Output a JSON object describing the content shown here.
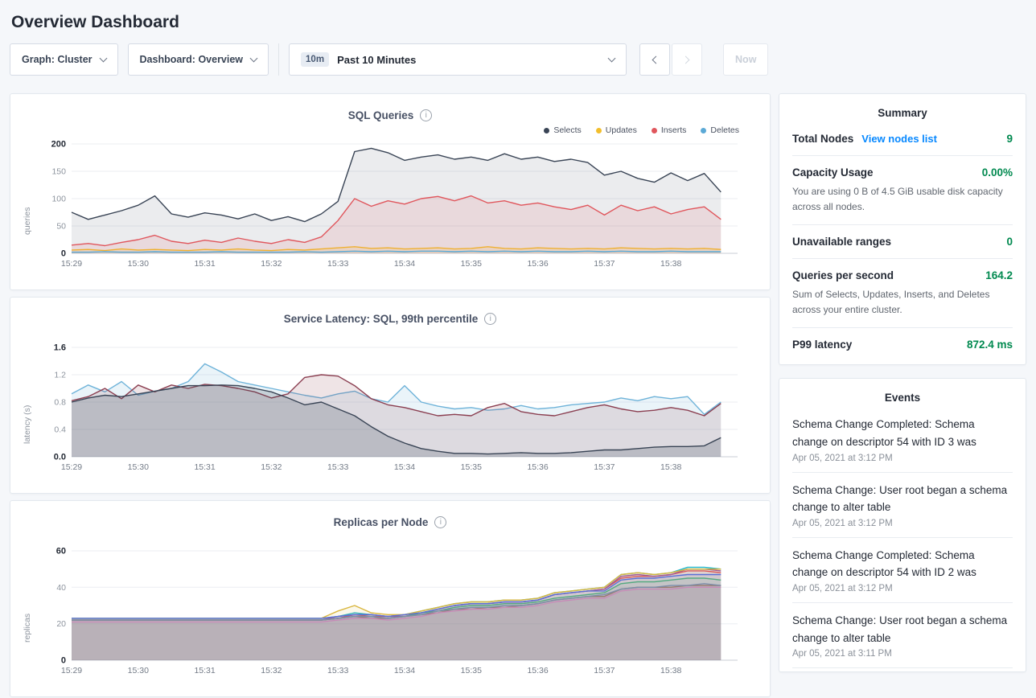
{
  "page": {
    "title": "Overview Dashboard"
  },
  "colors": {
    "accent_green": "#00894f",
    "link_blue": "#0788ff",
    "background": "#f5f7fa"
  },
  "toolbar": {
    "graph_dropdown": "Graph: Cluster",
    "dashboard_dropdown": "Dashboard: Overview",
    "time_selector": {
      "badge": "10m",
      "value": "Past 10 Minutes"
    },
    "now_button": "Now"
  },
  "summary": {
    "title": "Summary",
    "rows": [
      {
        "label": "Total Nodes",
        "link": "View nodes list",
        "value": "9"
      },
      {
        "label": "Capacity Usage",
        "value": "0.00%",
        "description": "You are using 0 B of 4.5 GiB usable disk capacity across all nodes."
      },
      {
        "label": "Unavailable ranges",
        "value": "0"
      },
      {
        "label": "Queries per second",
        "value": "164.2",
        "description": "Sum of Selects, Updates, Inserts, and Deletes across your entire cluster."
      },
      {
        "label": "P99 latency",
        "value": "872.4 ms"
      }
    ]
  },
  "events": {
    "title": "Events",
    "items": [
      {
        "message": "Schema Change Completed: Schema change on descriptor 54 with ID 3 was",
        "timestamp": "Apr 05, 2021 at 3:12 PM"
      },
      {
        "message": "Schema Change: User root began a schema change to alter table",
        "timestamp": "Apr 05, 2021 at 3:12 PM"
      },
      {
        "message": "Schema Change Completed: Schema change on descriptor 54 with ID 2 was",
        "timestamp": "Apr 05, 2021 at 3:12 PM"
      },
      {
        "message": "Schema Change: User root began a schema change to alter table",
        "timestamp": "Apr 05, 2021 at 3:11 PM"
      }
    ]
  },
  "chart_data": [
    {
      "type": "line",
      "title": "SQL Queries",
      "ylabel": "queries",
      "ylim": [
        0,
        200
      ],
      "yticks": [
        0,
        50,
        100,
        150,
        200
      ],
      "x_ticks": [
        "15:29",
        "15:30",
        "15:31",
        "15:32",
        "15:33",
        "15:34",
        "15:35",
        "15:36",
        "15:37",
        "15:38"
      ],
      "x_span_seconds": 600,
      "point_interval_seconds": 15,
      "legend": true,
      "legend_position": "top-right",
      "grid": true,
      "series": [
        {
          "name": "Selects",
          "color": "#394455",
          "fill": "rgba(57,68,85,0.10)",
          "values": [
            75,
            62,
            70,
            78,
            88,
            105,
            72,
            66,
            74,
            70,
            63,
            72,
            60,
            67,
            58,
            72,
            95,
            186,
            192,
            184,
            170,
            176,
            180,
            172,
            176,
            170,
            182,
            172,
            176,
            168,
            172,
            166,
            143,
            150,
            137,
            130,
            147,
            133,
            146,
            112
          ]
        },
        {
          "name": "Updates",
          "color": "#f2be2c",
          "fill": "rgba(242,190,44,0.15)",
          "values": [
            6,
            7,
            5,
            8,
            6,
            7,
            6,
            5,
            7,
            6,
            8,
            6,
            5,
            7,
            6,
            8,
            10,
            12,
            9,
            10,
            8,
            9,
            10,
            8,
            9,
            12,
            9,
            8,
            10,
            9,
            8,
            9,
            8,
            10,
            9,
            8,
            9,
            8,
            9,
            7
          ]
        },
        {
          "name": "Inserts",
          "color": "#e0565c",
          "fill": "rgba(224,86,92,0.12)",
          "values": [
            15,
            18,
            14,
            20,
            25,
            33,
            22,
            18,
            24,
            20,
            28,
            22,
            18,
            25,
            20,
            30,
            60,
            100,
            86,
            96,
            90,
            100,
            104,
            96,
            105,
            92,
            96,
            88,
            92,
            85,
            80,
            88,
            70,
            88,
            78,
            85,
            72,
            80,
            85,
            62
          ]
        },
        {
          "name": "Deletes",
          "color": "#5ba9d6",
          "fill": "none",
          "values": [
            2,
            2,
            3,
            2,
            2,
            3,
            2,
            2,
            2,
            3,
            2,
            2,
            2,
            2,
            3,
            2,
            3,
            4,
            3,
            4,
            3,
            4,
            4,
            3,
            4,
            3,
            4,
            3,
            4,
            3,
            3,
            4,
            3,
            4,
            3,
            3,
            4,
            3,
            3,
            3
          ]
        }
      ]
    },
    {
      "type": "line",
      "title": "Service Latency: SQL, 99th percentile",
      "ylabel": "latency (s)",
      "ylim": [
        0,
        1.6
      ],
      "yticks": [
        0,
        0.4,
        0.8,
        1.2,
        1.6
      ],
      "ytick_labels": [
        "0.0",
        "0.4",
        "0.8",
        "1.2",
        "1.6"
      ],
      "x_ticks": [
        "15:29",
        "15:30",
        "15:31",
        "15:32",
        "15:33",
        "15:34",
        "15:35",
        "15:36",
        "15:37",
        "15:38"
      ],
      "x_span_seconds": 600,
      "point_interval_seconds": 15,
      "legend": false,
      "grid": true,
      "series": [
        {
          "color": "#6fb3d9",
          "fill": "rgba(111,179,217,0.15)",
          "values": [
            0.92,
            1.05,
            0.95,
            1.1,
            0.9,
            0.96,
            1.0,
            1.1,
            1.36,
            1.24,
            1.1,
            1.05,
            1.0,
            0.95,
            0.9,
            0.86,
            0.92,
            0.96,
            0.85,
            0.8,
            1.04,
            0.8,
            0.74,
            0.7,
            0.72,
            0.68,
            0.7,
            0.75,
            0.7,
            0.72,
            0.76,
            0.78,
            0.8,
            0.86,
            0.82,
            0.88,
            0.85,
            0.88,
            0.62,
            0.8
          ]
        },
        {
          "color": "#8b3f51",
          "fill": "rgba(139,63,81,0.14)",
          "values": [
            0.82,
            0.88,
            1.0,
            0.85,
            1.05,
            0.95,
            1.05,
            1.0,
            1.06,
            1.04,
            1.0,
            0.95,
            0.86,
            0.92,
            1.16,
            1.2,
            1.18,
            1.04,
            0.85,
            0.76,
            0.72,
            0.66,
            0.6,
            0.62,
            0.6,
            0.72,
            0.78,
            0.66,
            0.62,
            0.6,
            0.66,
            0.72,
            0.76,
            0.7,
            0.66,
            0.68,
            0.72,
            0.68,
            0.6,
            0.78
          ]
        },
        {
          "color": "#394455",
          "fill": "rgba(57,68,85,0.20)",
          "values": [
            0.8,
            0.86,
            0.9,
            0.88,
            0.92,
            0.96,
            1.0,
            1.04,
            1.04,
            1.05,
            1.04,
            1.0,
            0.95,
            0.86,
            0.76,
            0.8,
            0.7,
            0.6,
            0.44,
            0.3,
            0.2,
            0.12,
            0.08,
            0.05,
            0.05,
            0.04,
            0.05,
            0.06,
            0.05,
            0.05,
            0.06,
            0.08,
            0.1,
            0.1,
            0.12,
            0.14,
            0.15,
            0.15,
            0.16,
            0.28
          ]
        }
      ]
    },
    {
      "type": "line",
      "title": "Replicas per Node",
      "ylabel": "replicas",
      "ylim": [
        0,
        60
      ],
      "yticks": [
        0,
        20,
        40,
        60
      ],
      "x_ticks": [
        "15:29",
        "15:30",
        "15:31",
        "15:32",
        "15:33",
        "15:34",
        "15:35",
        "15:36",
        "15:37",
        "15:38"
      ],
      "x_span_seconds": 600,
      "point_interval_seconds": 15,
      "legend": false,
      "grid": true,
      "series": [
        {
          "color": "#24b6c9",
          "fill": "rgba(36,182,201,0.10)",
          "values": [
            23,
            23,
            23,
            23,
            23,
            23,
            23,
            23,
            23,
            23,
            23,
            23,
            23,
            23,
            23,
            23,
            24,
            26,
            25,
            24,
            25,
            27,
            29,
            31,
            32,
            32,
            33,
            33,
            34,
            37,
            38,
            39,
            40,
            47,
            48,
            47,
            48,
            51,
            51,
            50
          ]
        },
        {
          "color": "#e34f57",
          "fill": "rgba(227,79,87,0.10)",
          "values": [
            22,
            22,
            22,
            22,
            22,
            22,
            22,
            22,
            22,
            22,
            22,
            22,
            22,
            22,
            22,
            22,
            23,
            25,
            24,
            24,
            25,
            26,
            28,
            30,
            31,
            31,
            32,
            32,
            33,
            36,
            37,
            38,
            39,
            45,
            46,
            46,
            47,
            49,
            49,
            48
          ]
        },
        {
          "color": "#9e4f9e",
          "fill": "rgba(158,79,158,0.10)",
          "values": [
            22,
            22,
            22,
            22,
            22,
            22,
            22,
            22,
            22,
            22,
            22,
            22,
            22,
            22,
            22,
            22,
            24,
            25,
            25,
            24,
            24,
            26,
            28,
            30,
            31,
            31,
            32,
            32,
            33,
            36,
            37,
            38,
            39,
            46,
            47,
            46,
            47,
            50,
            50,
            49
          ]
        },
        {
          "color": "#d9b63e",
          "fill": "rgba(217,182,62,0.10)",
          "values": [
            23,
            23,
            23,
            23,
            23,
            23,
            23,
            23,
            23,
            23,
            23,
            23,
            23,
            23,
            23,
            23,
            27,
            30,
            26,
            25,
            25,
            27,
            29,
            31,
            32,
            32,
            33,
            33,
            34,
            37,
            38,
            39,
            40,
            47,
            48,
            47,
            48,
            50,
            50,
            50
          ]
        },
        {
          "color": "#54b077",
          "fill": "rgba(84,176,119,0.10)",
          "values": [
            22,
            22,
            22,
            22,
            22,
            22,
            22,
            22,
            22,
            22,
            22,
            22,
            22,
            22,
            22,
            22,
            23,
            24,
            24,
            23,
            24,
            26,
            27,
            29,
            30,
            30,
            31,
            31,
            32,
            34,
            35,
            36,
            37,
            42,
            43,
            43,
            44,
            45,
            45,
            44
          ]
        },
        {
          "color": "#a8785a",
          "fill": "rgba(168,120,90,0.12)",
          "values": [
            22,
            22,
            22,
            22,
            22,
            22,
            22,
            22,
            22,
            22,
            22,
            22,
            22,
            22,
            22,
            22,
            23,
            24,
            23,
            23,
            24,
            25,
            26,
            28,
            28,
            29,
            29,
            30,
            31,
            33,
            34,
            35,
            35,
            39,
            40,
            40,
            40,
            41,
            41,
            41
          ]
        },
        {
          "color": "#e08fb8",
          "fill": "rgba(224,143,184,0.10)",
          "values": [
            21,
            21,
            21,
            21,
            21,
            21,
            21,
            21,
            21,
            21,
            21,
            21,
            21,
            21,
            21,
            21,
            22,
            23,
            23,
            22,
            23,
            24,
            26,
            27,
            28,
            28,
            29,
            29,
            30,
            32,
            33,
            34,
            34,
            38,
            39,
            39,
            39,
            40,
            40,
            40
          ]
        },
        {
          "color": "#8091a5",
          "fill": "rgba(128,145,165,0.12)",
          "values": [
            22,
            22,
            22,
            22,
            22,
            22,
            22,
            22,
            22,
            22,
            22,
            22,
            22,
            22,
            22,
            22,
            23,
            24,
            24,
            23,
            24,
            25,
            27,
            28,
            29,
            29,
            30,
            30,
            31,
            33,
            34,
            35,
            36,
            39,
            40,
            40,
            41,
            41,
            42,
            41
          ]
        },
        {
          "color": "#5b6fd6",
          "fill": "rgba(91,111,214,0.10)",
          "values": [
            23,
            23,
            23,
            23,
            23,
            23,
            23,
            23,
            23,
            23,
            23,
            23,
            23,
            23,
            23,
            23,
            24,
            25,
            25,
            24,
            25,
            26,
            28,
            30,
            31,
            31,
            32,
            32,
            33,
            36,
            37,
            38,
            38,
            44,
            45,
            45,
            46,
            47,
            47,
            47
          ]
        }
      ]
    }
  ]
}
